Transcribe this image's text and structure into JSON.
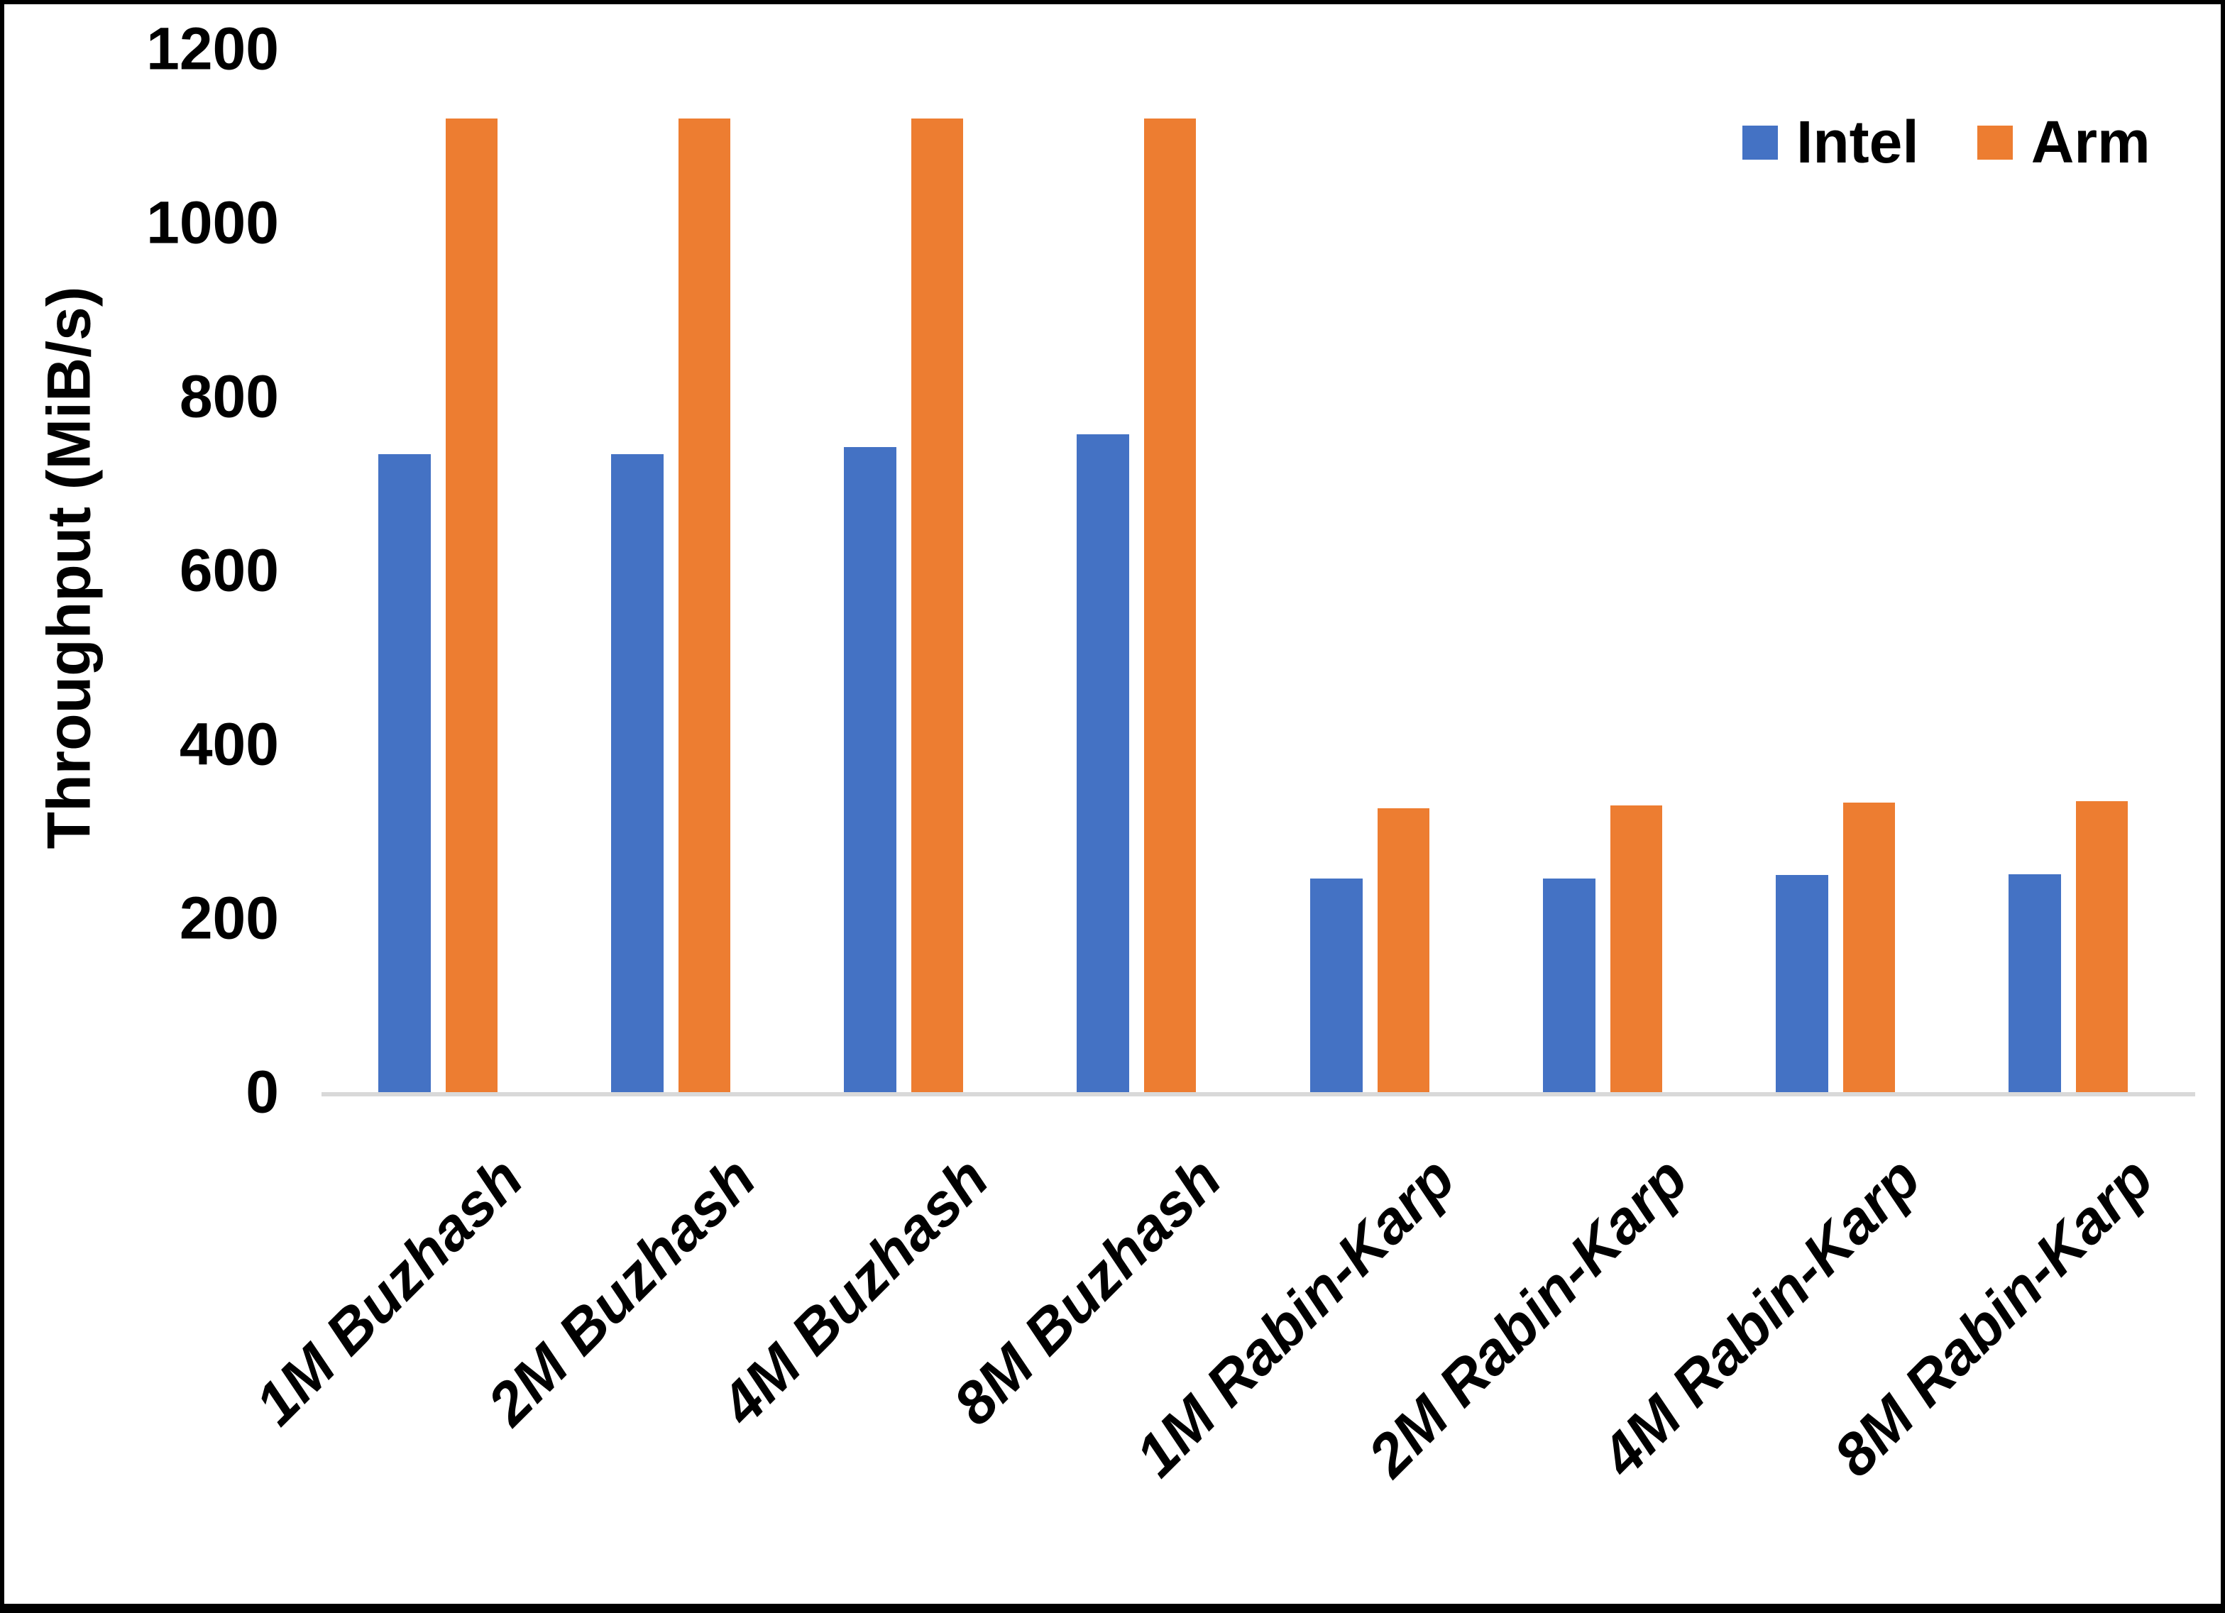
{
  "chart_data": {
    "type": "bar",
    "title": "",
    "xlabel": "",
    "ylabel": "Throughput (MiB/s)",
    "ylim": [
      0,
      1200
    ],
    "yticks": [
      0,
      200,
      400,
      600,
      800,
      1000,
      1200
    ],
    "grid": false,
    "legend_position": "top-right",
    "categories": [
      "1M Buzhash",
      "2M Buzhash",
      "4M Buzhash",
      "8M Buzhash",
      "1M Rabin-Karp",
      "2M Rabin-Karp",
      "4M Rabin-Karp",
      "8M Rabin-Karp"
    ],
    "series": [
      {
        "name": "Intel",
        "color": "#4472C4",
        "values": [
          734,
          734,
          742,
          757,
          246,
          246,
          250,
          251
        ]
      },
      {
        "name": "Arm",
        "color": "#ED7D31",
        "values": [
          1120,
          1120,
          1120,
          1120,
          327,
          330,
          333,
          335
        ]
      }
    ]
  },
  "colors": {
    "axis_line": "#D9D9D9",
    "text": "#000000",
    "background": "#FFFFFF",
    "frame": "#000000"
  }
}
